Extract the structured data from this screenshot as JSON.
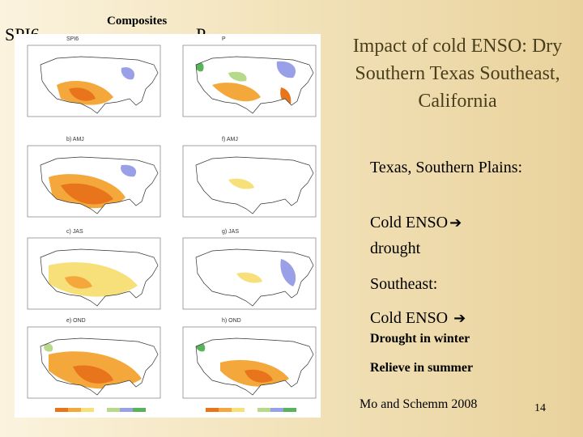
{
  "labels": {
    "spi6": "SPI6",
    "composites": "Composites",
    "p": "P"
  },
  "title": "Impact of cold ENSO: Dry Southern Texas Southeast, California",
  "bullets": {
    "texas_heading": "Texas, Southern Plains:",
    "texas_line1": "Cold ENSO",
    "texas_line2": "drought",
    "southeast_heading": "Southeast:",
    "southeast_line1": "Cold ENSO",
    "southeast_winter": "Drought in winter",
    "southeast_summer": "Relieve in summer"
  },
  "citation": "Mo and Schemm 2008",
  "page_number": "14",
  "figure": {
    "panels_left": [
      "SPI6",
      "b) AMJ",
      "c) JAS",
      "e) OND"
    ],
    "panels_right": [
      "P",
      "f) AMJ",
      "g) JAS",
      "h) OND"
    ],
    "colors": {
      "dry_strong": "#e8741c",
      "dry_mid": "#f4a83c",
      "dry_light": "#f7e07a",
      "wet_light": "#b7d98a",
      "wet_mid": "#9aa0e8",
      "wet_strong": "#58b45a"
    }
  }
}
